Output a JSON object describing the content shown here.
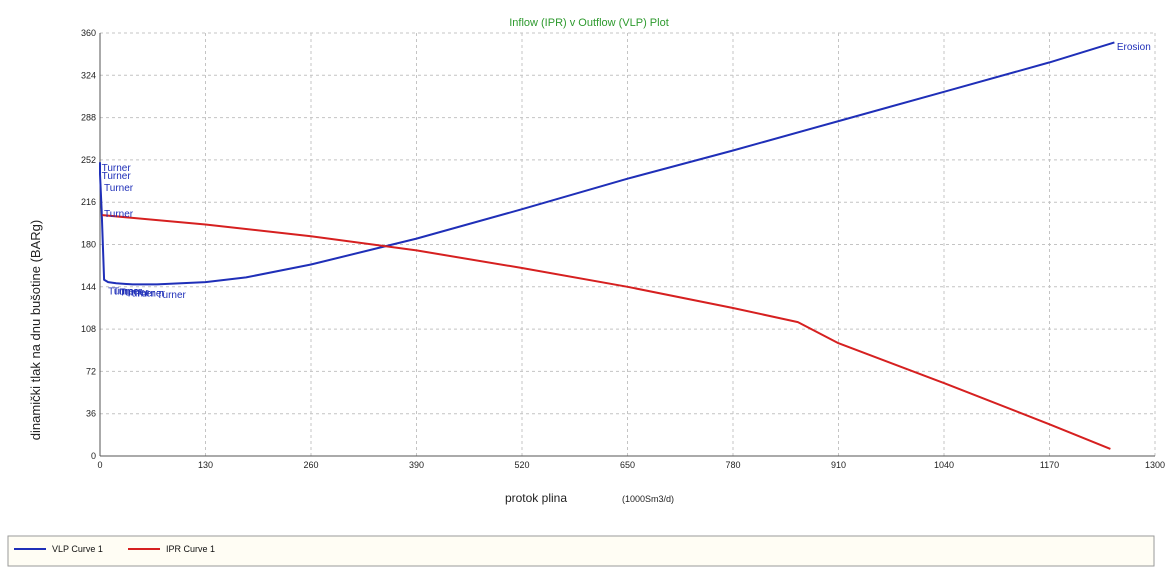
{
  "chart_data": {
    "type": "line",
    "title": "Inflow (IPR) v Outflow (VLP) Plot",
    "xlabel": "protok plina",
    "xunit": "(1000Sm3/d)",
    "ylabel": "dinamički tlak na dnu bušotine (BARg)",
    "xlim": [
      0,
      1300
    ],
    "ylim": [
      0,
      360
    ],
    "xticks": [
      "0",
      "130",
      "260",
      "390",
      "520",
      "650",
      "780",
      "910",
      "1040",
      "1170",
      "1300"
    ],
    "yticks": [
      "0",
      "36",
      "72",
      "108",
      "144",
      "180",
      "216",
      "252",
      "288",
      "324",
      "360"
    ],
    "grid": true,
    "legend_position": "bottom",
    "series": [
      {
        "name": "VLP Curve 1",
        "color": "#1f2fb8",
        "x": [
          0,
          0,
          2,
          5,
          10,
          20,
          40,
          70,
          100,
          130,
          180,
          260,
          390,
          520,
          650,
          780,
          910,
          1040,
          1170,
          1250
        ],
        "y": [
          250,
          240,
          210,
          150,
          148,
          147,
          146,
          146,
          147,
          148,
          152,
          163,
          185,
          210,
          236,
          260,
          285,
          310,
          335,
          352
        ]
      },
      {
        "name": "IPR Curve 1",
        "color": "#d62020",
        "x": [
          3,
          130,
          260,
          390,
          520,
          650,
          780,
          860,
          910,
          1040,
          1170,
          1245
        ],
        "y": [
          205,
          197,
          187,
          175,
          160,
          144,
          126,
          114,
          96,
          62,
          27,
          6
        ]
      }
    ],
    "annotations": [
      {
        "text": "Erosion",
        "x": 1253,
        "y": 349,
        "color": "#1f2fb8"
      },
      {
        "text": "Turner",
        "x": 2,
        "y": 246,
        "color": "#1f2fb8"
      },
      {
        "text": "Turner",
        "x": 2,
        "y": 239,
        "color": "#1f2fb8"
      },
      {
        "text": "Turner",
        "x": 5,
        "y": 229,
        "color": "#1f2fb8"
      },
      {
        "text": "Turner",
        "x": 5,
        "y": 207,
        "color": "#1f2fb8"
      },
      {
        "text": "Turner",
        "x": 10,
        "y": 141,
        "color": "#1f2fb8"
      },
      {
        "text": "Turner",
        "x": 16,
        "y": 141,
        "color": "#1f2fb8"
      },
      {
        "text": "Turner",
        "x": 24,
        "y": 140,
        "color": "#1f2fb8"
      },
      {
        "text": "Turner",
        "x": 32,
        "y": 139,
        "color": "#1f2fb8"
      },
      {
        "text": "Turner",
        "x": 44,
        "y": 139,
        "color": "#1f2fb8"
      },
      {
        "text": "Turner",
        "x": 70,
        "y": 138,
        "color": "#1f2fb8"
      }
    ]
  }
}
